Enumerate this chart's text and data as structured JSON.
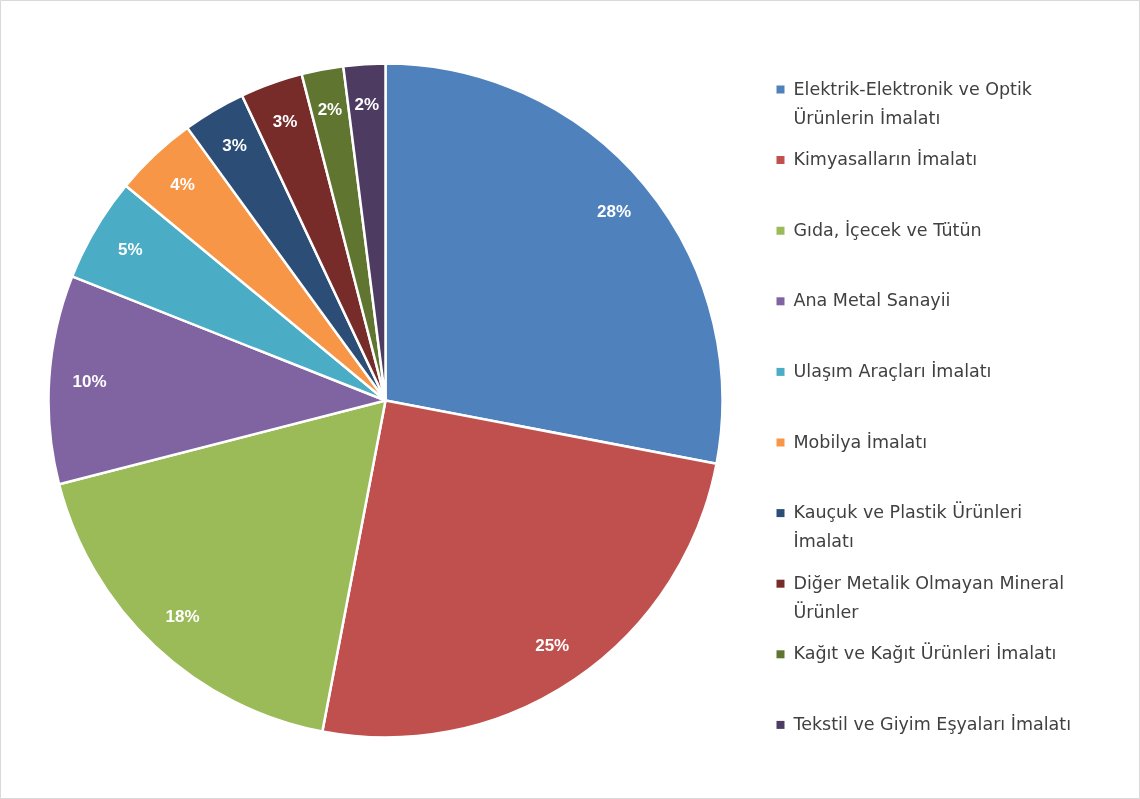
{
  "chart_data": {
    "type": "pie",
    "categories": [
      "Elektrik-Elektronik ve Optik Ürünlerin İmalatı",
      "Kimyasalların İmalatı",
      "Gıda, İçecek ve Tütün",
      "Ana Metal Sanayii",
      "Ulaşım Araçları İmalatı",
      "Mobilya İmalatı",
      "Kauçuk ve Plastik Ürünleri İmalatı",
      "Diğer Metalik Olmayan Mineral Ürünler",
      "Kağıt ve Kağıt Ürünleri İmalatı",
      "Tekstil ve Giyim Eşyaları İmalatı"
    ],
    "values": [
      28,
      25,
      18,
      10,
      5,
      4,
      3,
      3,
      2,
      2
    ],
    "value_labels": [
      "28%",
      "25%",
      "18%",
      "10%",
      "5%",
      "4%",
      "3%",
      "3%",
      "2%",
      "2%"
    ],
    "colors": [
      "#4f81bd",
      "#c0504d",
      "#9bbb59",
      "#8064a2",
      "#4bacc6",
      "#f79646",
      "#2c4d75",
      "#772c2a",
      "#5f7530",
      "#4d3b62"
    ],
    "legend": "right"
  }
}
